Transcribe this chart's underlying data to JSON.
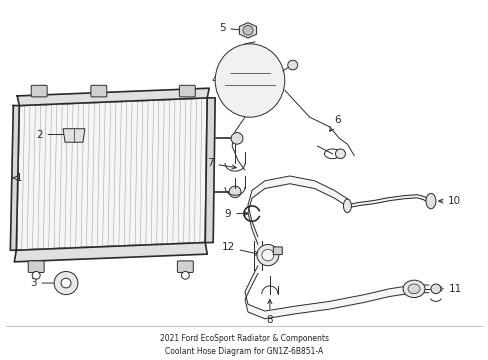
{
  "title": "2021 Ford EcoSport Radiator & Components\nCoolant Hose Diagram for GN1Z-6B851-A",
  "bg_color": "#ffffff",
  "line_color": "#2a2a2a",
  "fig_w": 4.89,
  "fig_h": 3.6,
  "dpi": 100
}
